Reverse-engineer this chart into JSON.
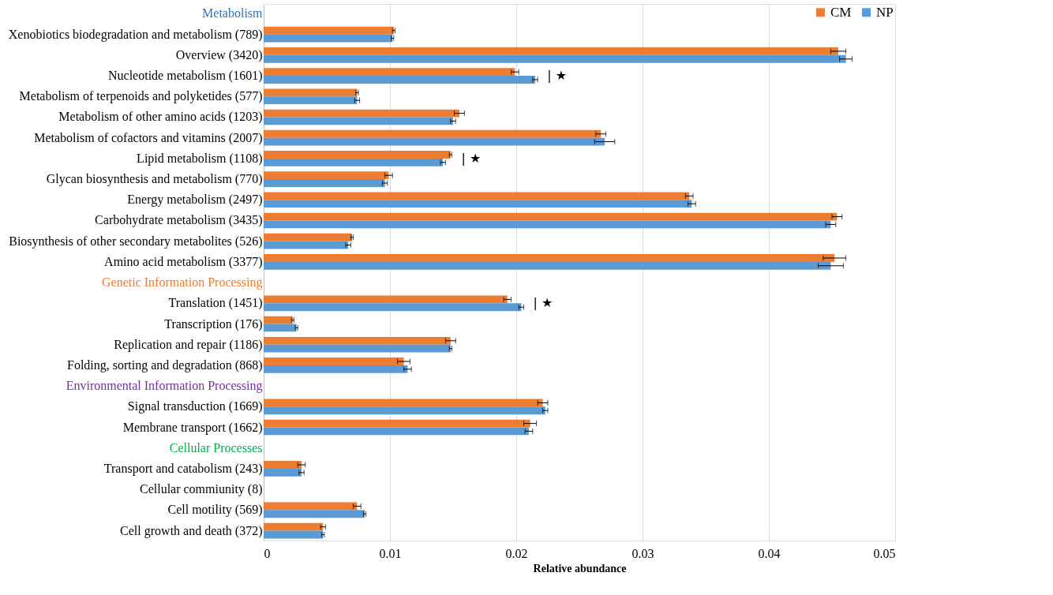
{
  "chart_data": {
    "type": "bar",
    "orientation": "horizontal",
    "xlabel": "Relative abundance",
    "categories": [
      "Metabolism",
      "Xenobiotics biodegradation and metabolism (789)",
      "Overview (3420)",
      "Nucleotide metabolism (1601)",
      "Metabolism of terpenoids and polyketides (577)",
      "Metabolism of other amino acids (1203)",
      "Metabolism of cofactors and vitamins (2007)",
      "Lipid metabolism (1108)",
      "Glycan biosynthesis and metabolism (770)",
      "Energy metabolism (2497)",
      "Carbohydrate metabolism (3435)",
      "Biosynthesis of other secondary metabolites (526)",
      "Amino acid metabolism (3377)",
      "Genetic Information Processing",
      "Translation (1451)",
      "Transcription (176)",
      "Replication and repair (1186)",
      "Folding, sorting and degradation (868)",
      "Environmental Information Processing",
      "Signal transduction (1669)",
      "Membrane transport (1662)",
      "Cellular Processes",
      "Transport and catabolism (243)",
      "Cellular commiunity (8)",
      "Cell motility (569)",
      "Cell growth and death (372)"
    ],
    "series": [
      {
        "name": "CM",
        "color": "#ed7d31",
        "values": [
          null,
          0.0103,
          0.0455,
          0.0199,
          0.0074,
          0.0155,
          0.0267,
          0.0148,
          0.0099,
          0.0337,
          0.0454,
          0.007,
          0.0452,
          null,
          0.0193,
          0.0023,
          0.0148,
          0.0111,
          null,
          0.0221,
          0.0211,
          null,
          0.003,
          0,
          0.0074,
          0.0047
        ],
        "errors": [
          null,
          0.0001,
          0.0006,
          0.0003,
          0.0001,
          0.0004,
          0.0004,
          0.0001,
          0.0003,
          0.0003,
          0.0004,
          0.0001,
          0.0009,
          null,
          0.0003,
          0.0001,
          0.0004,
          0.0005,
          null,
          0.0004,
          0.0005,
          null,
          0.0003,
          null,
          0.0003,
          0.0002
        ]
      },
      {
        "name": "NP",
        "color": "#5b9bd5",
        "values": [
          null,
          0.0102,
          0.0461,
          0.0215,
          0.0074,
          0.015,
          0.027,
          0.0142,
          0.0096,
          0.0339,
          0.0449,
          0.0067,
          0.0449,
          null,
          0.0204,
          0.0026,
          0.0148,
          0.0114,
          null,
          0.0223,
          0.021,
          null,
          0.003,
          0,
          0.008,
          0.0047
        ],
        "value_labels": [
          null,
          null,
          null,
          "| ★",
          null,
          null,
          null,
          "| ★",
          null,
          null,
          null,
          null,
          null,
          null,
          "| ★",
          null,
          null,
          null,
          null,
          null,
          null,
          null,
          null,
          null,
          null,
          null
        ],
        "errors": [
          null,
          0.0001,
          0.0005,
          0.0002,
          0.0002,
          0.0002,
          0.0008,
          0.0002,
          0.0002,
          0.0003,
          0.0004,
          0.0002,
          0.001,
          null,
          0.0002,
          0.0001,
          0.0001,
          0.0003,
          null,
          0.0002,
          0.0003,
          null,
          0.0002,
          null,
          0.0001,
          0.0001
        ]
      }
    ],
    "xlim": [
      0,
      0.05
    ],
    "xticks": [
      0,
      0.01,
      0.02,
      0.03,
      0.04,
      0.05
    ],
    "grid": "x",
    "legend": "top right"
  }
}
